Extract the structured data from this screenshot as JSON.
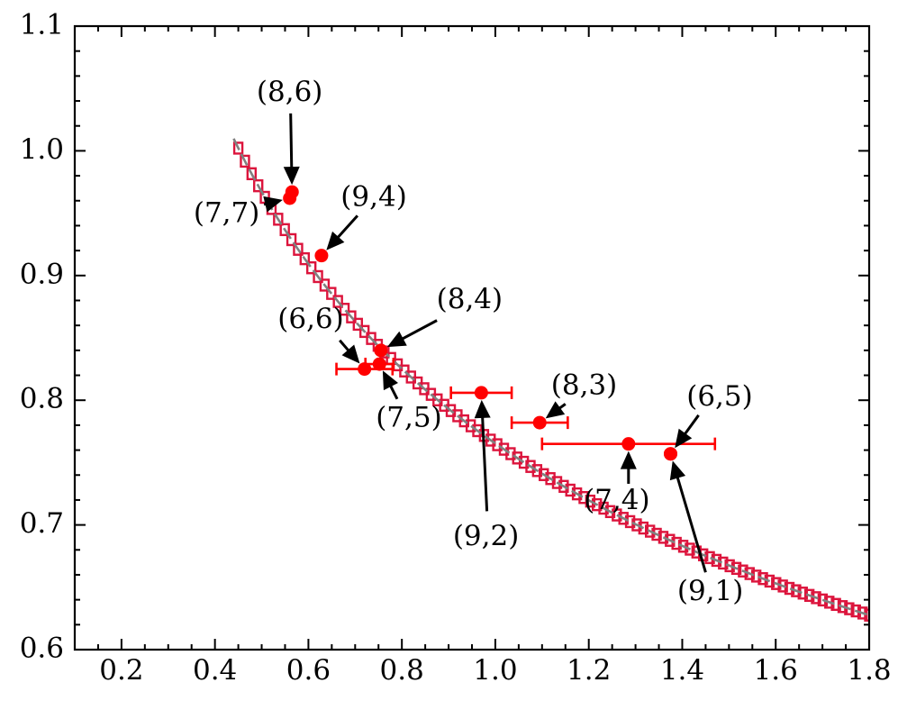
{
  "chart_data": {
    "type": "scatter",
    "title": "",
    "xlabel": "",
    "ylabel": "",
    "xlim": [
      0.1,
      1.8
    ],
    "ylim": [
      0.6,
      1.1
    ],
    "x_ticks": [
      0.2,
      0.4,
      0.6,
      0.8,
      1.0,
      1.2,
      1.4,
      1.6,
      1.8
    ],
    "x_tick_labels": [
      "0.2",
      "0.4",
      "0.6",
      "0.8",
      "1.0",
      "1.2",
      "1.4",
      "1.6",
      "1.8"
    ],
    "y_ticks": [
      0.6,
      0.7,
      0.8,
      0.9,
      1.0,
      1.1
    ],
    "y_tick_labels": [
      "0.6",
      "0.7",
      "0.8",
      "0.9",
      "1.0",
      "1.1"
    ],
    "grid": false,
    "colors": {
      "points": "#ff0000",
      "markers": "#dc143c",
      "curve": "#808080",
      "axis": "#000000",
      "arrow": "#000000"
    },
    "fit_curve": {
      "model": "y = 0.7654 * x^(-0.3375)",
      "x_range": [
        0.45,
        1.8
      ],
      "sample_count": 96
    },
    "points": [
      {
        "label": "(8,6)",
        "x": 0.565,
        "y": 0.967,
        "xerr": 0,
        "text_at": [
          0.56,
          1.046
        ],
        "arrow_from": [
          0.562,
          1.03
        ]
      },
      {
        "label": "(7,7)",
        "x": 0.56,
        "y": 0.962,
        "xerr": 0,
        "text_at": [
          0.425,
          0.949
        ],
        "arrow_from": [
          0.505,
          0.957
        ]
      },
      {
        "label": "(9,4)",
        "x": 0.628,
        "y": 0.916,
        "xerr": 0,
        "text_at": [
          0.74,
          0.962
        ],
        "arrow_from": [
          0.705,
          0.948
        ]
      },
      {
        "label": "(8,4)",
        "x": 0.755,
        "y": 0.84,
        "xerr": 0,
        "text_at": [
          0.945,
          0.88
        ],
        "arrow_from": [
          0.875,
          0.864
        ]
      },
      {
        "label": "(6,6)",
        "x": 0.72,
        "y": 0.825,
        "xerr": 0.06,
        "text_at": [
          0.605,
          0.864
        ],
        "arrow_from": [
          0.667,
          0.848
        ]
      },
      {
        "label": "(7,5)",
        "x": 0.752,
        "y": 0.829,
        "xerr": 0.03,
        "text_at": [
          0.815,
          0.785
        ],
        "arrow_from": [
          0.79,
          0.801
        ]
      },
      {
        "label": "(9,2)",
        "x": 0.97,
        "y": 0.806,
        "xerr": 0.065,
        "text_at": [
          0.98,
          0.69
        ],
        "arrow_from": [
          0.982,
          0.711
        ]
      },
      {
        "label": "(8,3)",
        "x": 1.095,
        "y": 0.782,
        "xerr": 0.06,
        "text_at": [
          1.19,
          0.811
        ],
        "arrow_from": [
          1.15,
          0.797
        ]
      },
      {
        "label": "(7,4)",
        "x": 1.285,
        "y": 0.765,
        "xerr": 0.185,
        "text_at": [
          1.26,
          0.719
        ],
        "arrow_from": [
          1.285,
          0.733
        ]
      },
      {
        "label": "(6,5)",
        "x": 1.375,
        "y": 0.757,
        "xerr": 0,
        "text_at": [
          1.48,
          0.802
        ],
        "arrow_from": [
          1.435,
          0.788
        ]
      },
      {
        "label": "(9,1)",
        "x": 1.375,
        "y": 0.757,
        "xerr": 0,
        "text_at": [
          1.46,
          0.646
        ],
        "arrow_from": [
          1.45,
          0.662
        ]
      }
    ]
  }
}
